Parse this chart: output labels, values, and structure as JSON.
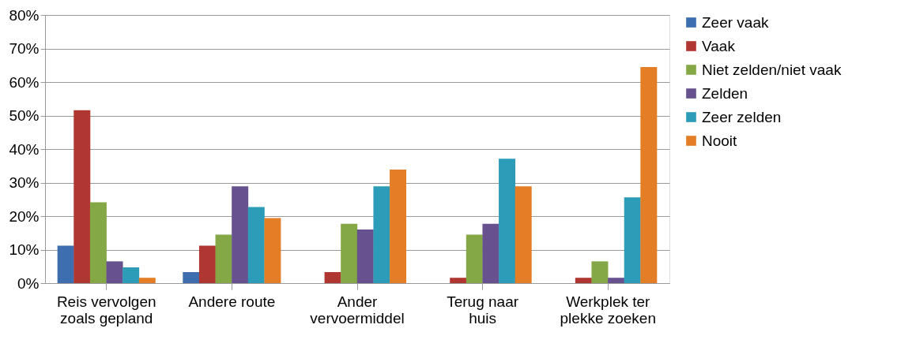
{
  "chart_data": {
    "type": "bar",
    "categories": [
      "Reis vervolgen zoals gepland",
      "Andere route",
      "Ander vervoermiddel",
      "Terug naar huis",
      "Werkplek ter plekke zoeken"
    ],
    "series": [
      {
        "name": "Zeer vaak",
        "color": "#3c6eb0",
        "values": [
          11.2,
          3.3,
          0,
          0,
          0
        ]
      },
      {
        "name": "Vaak",
        "color": "#b03632",
        "values": [
          51.6,
          11.2,
          3.3,
          1.6,
          1.6
        ]
      },
      {
        "name": "Niet zelden/niet vaak",
        "color": "#84a845",
        "values": [
          24.1,
          14.5,
          17.7,
          14.5,
          6.5
        ]
      },
      {
        "name": "Zelden",
        "color": "#67528f",
        "values": [
          6.5,
          28.9,
          16.0,
          17.7,
          1.6
        ]
      },
      {
        "name": "Zeer zelden",
        "color": "#2d9cb9",
        "values": [
          4.7,
          22.7,
          28.9,
          37.1,
          25.6
        ]
      },
      {
        "name": "Nooit",
        "color": "#e47e26",
        "values": [
          1.6,
          19.4,
          33.9,
          28.9,
          64.5
        ]
      }
    ],
    "ylim": [
      0,
      80
    ],
    "yticks": [
      {
        "value": 0,
        "label": "0%"
      },
      {
        "value": 10,
        "label": "10%"
      },
      {
        "value": 20,
        "label": "20%"
      },
      {
        "value": 30,
        "label": "30%"
      },
      {
        "value": 40,
        "label": "40%"
      },
      {
        "value": 50,
        "label": "50%"
      },
      {
        "value": 60,
        "label": "60%"
      },
      {
        "value": 70,
        "label": "70%"
      },
      {
        "value": 80,
        "label": "80%"
      }
    ],
    "grid": "y",
    "legend": "right"
  }
}
